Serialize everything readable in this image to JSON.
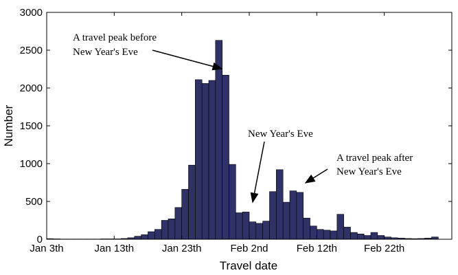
{
  "chart_data": {
    "type": "bar",
    "xlabel": "Travel date",
    "ylabel": "Number",
    "ylim": [
      0,
      3000
    ],
    "xlim": [
      0,
      60
    ],
    "yticks": [
      0,
      500,
      1000,
      1500,
      2000,
      2500,
      3000
    ],
    "xticks": [
      {
        "label": "Jan 3th",
        "day": 0
      },
      {
        "label": "Jan 13th",
        "day": 10
      },
      {
        "label": "Jan 23th",
        "day": 20
      },
      {
        "label": "Feb 2nd",
        "day": 30
      },
      {
        "label": "Feb 12th",
        "day": 40
      },
      {
        "label": "Feb 22th",
        "day": 50
      }
    ],
    "bar_color": "#2e3266",
    "grid": false,
    "series": [
      {
        "values": [
          8,
          5,
          3,
          3,
          3,
          3,
          3,
          3,
          5,
          5,
          5,
          10,
          20,
          40,
          60,
          100,
          130,
          250,
          270,
          420,
          660,
          980,
          2110,
          2060,
          2100,
          2630,
          2170,
          990,
          350,
          360,
          230,
          210,
          240,
          630,
          920,
          490,
          640,
          620,
          280,
          175,
          130,
          120,
          110,
          330,
          160,
          90,
          70,
          50,
          90,
          50,
          30,
          20,
          15,
          10,
          8,
          10,
          15,
          30
        ]
      }
    ],
    "annotations": [
      {
        "lines": [
          "A travel peak before",
          "New Year's Eve"
        ]
      },
      {
        "lines": [
          "New Year's Eve"
        ]
      },
      {
        "lines": [
          "A travel peak after",
          "New Year's Eve"
        ]
      }
    ]
  }
}
